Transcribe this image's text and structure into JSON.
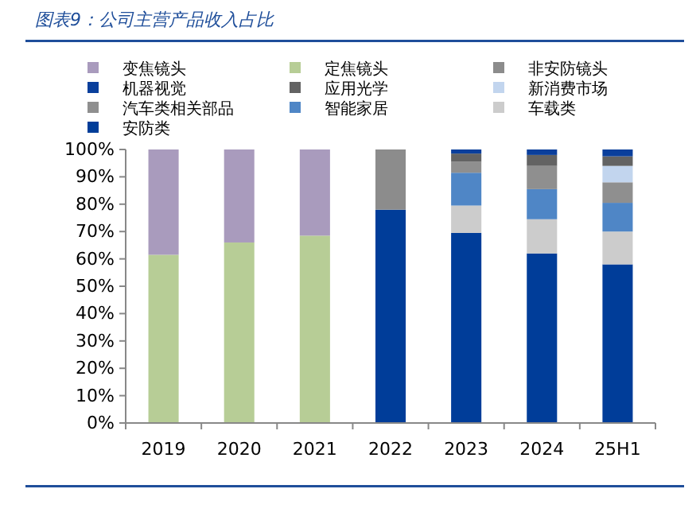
{
  "chart_data": {
    "type": "bar",
    "title": "图表9：公司主营产品收入占比",
    "categories": [
      "2019",
      "2020",
      "2021",
      "2022",
      "2023",
      "2024",
      "25H1"
    ],
    "stacked": true,
    "legend": "top",
    "grid": false,
    "ylim": [
      0,
      100
    ],
    "yticks": [
      {
        "value": 0,
        "label": "0%"
      },
      {
        "value": 10,
        "label": "10%"
      },
      {
        "value": 20,
        "label": "20%"
      },
      {
        "value": 30,
        "label": "30%"
      },
      {
        "value": 40,
        "label": "40%"
      },
      {
        "value": 50,
        "label": "50%"
      },
      {
        "value": 60,
        "label": "60%"
      },
      {
        "value": 70,
        "label": "70%"
      },
      {
        "value": 80,
        "label": "80%"
      },
      {
        "value": 90,
        "label": "90%"
      },
      {
        "value": 100,
        "label": "100%"
      }
    ],
    "series": [
      {
        "name": "安防类",
        "color": "#003d99",
        "values": [
          null,
          null,
          null,
          78,
          69.5,
          62,
          58
        ]
      },
      {
        "name": "车载类",
        "color": "#cccccc",
        "values": [
          null,
          null,
          null,
          null,
          10,
          12.5,
          12
        ]
      },
      {
        "name": "智能家居",
        "color": "#4f86c6",
        "values": [
          null,
          null,
          null,
          null,
          12,
          11,
          10.5
        ]
      },
      {
        "name": "汽车类相关部品",
        "color": "#8f8f8f",
        "values": [
          null,
          null,
          null,
          null,
          4,
          8.5,
          7.5
        ]
      },
      {
        "name": "新消费市场",
        "color": "#c2d5ee",
        "values": [
          null,
          null,
          null,
          null,
          null,
          null,
          6
        ]
      },
      {
        "name": "应用光学",
        "color": "#636363",
        "values": [
          null,
          null,
          null,
          null,
          3,
          4,
          3.5
        ]
      },
      {
        "name": "机器视觉",
        "color": "#0a3f9c",
        "values": [
          null,
          null,
          null,
          null,
          1.5,
          2,
          2.5
        ]
      },
      {
        "name": "非安防镜头",
        "color": "#8c8c8c",
        "values": [
          null,
          null,
          null,
          22,
          null,
          null,
          null
        ]
      },
      {
        "name": "定焦镜头",
        "color": "#b7cd96",
        "values": [
          61.5,
          66,
          68.5,
          null,
          null,
          null,
          null
        ]
      },
      {
        "name": "变焦镜头",
        "color": "#a99bbd",
        "values": [
          38.5,
          34,
          31.5,
          null,
          null,
          null,
          null
        ]
      }
    ]
  }
}
